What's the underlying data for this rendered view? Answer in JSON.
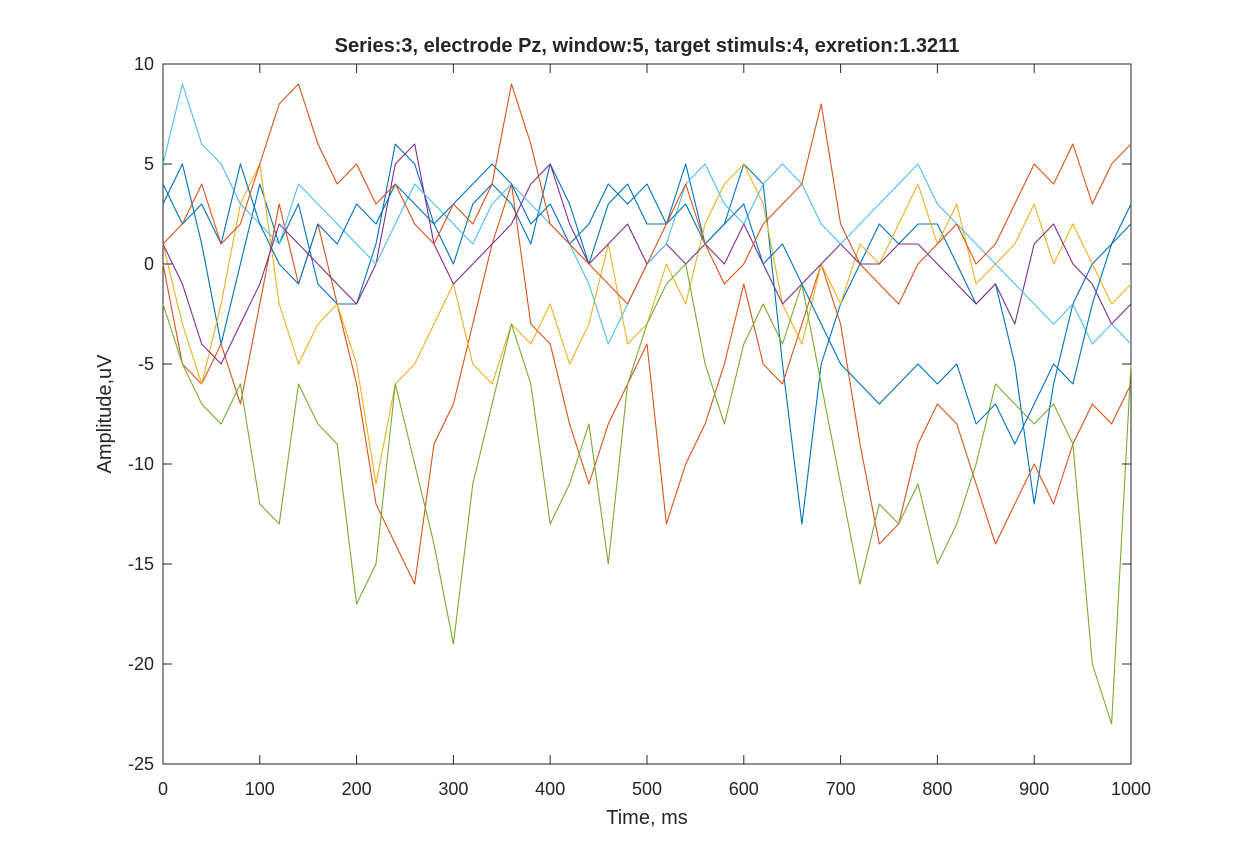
{
  "chart_data": {
    "type": "line",
    "title": "Series:3, electrode Pz, window:5, target stimuls:4, exretion:1.3211",
    "xlabel": "Time, ms",
    "ylabel": "Amplitude,uV",
    "xlim": [
      0,
      1000
    ],
    "ylim": [
      -25,
      10
    ],
    "xticks": [
      "0",
      "100",
      "200",
      "300",
      "400",
      "500",
      "600",
      "700",
      "800",
      "900",
      "1000"
    ],
    "yticks": [
      "10",
      "5",
      "0",
      "-5",
      "-10",
      "-15",
      "-20",
      "-25"
    ],
    "grid": false,
    "legend": "none",
    "colors": [
      "#0072BD",
      "#D95319",
      "#EDB120",
      "#7E2F8E",
      "#77AC30",
      "#4DBEEE",
      "#0072BD",
      "#D95319"
    ],
    "x": [
      0,
      20,
      40,
      60,
      80,
      100,
      120,
      140,
      160,
      180,
      200,
      220,
      240,
      260,
      280,
      300,
      320,
      340,
      360,
      380,
      400,
      420,
      440,
      460,
      480,
      500,
      520,
      540,
      560,
      580,
      600,
      620,
      640,
      660,
      680,
      700,
      720,
      740,
      760,
      780,
      800,
      820,
      840,
      860,
      880,
      900,
      920,
      940,
      960,
      980,
      1000
    ],
    "series": [
      {
        "values": [
          3,
          5,
          1,
          -4,
          0,
          4,
          1,
          3,
          -1,
          -2,
          -2,
          1,
          6,
          5,
          2,
          0,
          3,
          4,
          3,
          1,
          5,
          3,
          0,
          3,
          4,
          2,
          2,
          5,
          1,
          2,
          5,
          4,
          -5,
          -13,
          -5,
          -2,
          0,
          2,
          1,
          2,
          2,
          0,
          -2,
          -1,
          -5,
          -12,
          -6,
          -2,
          0,
          1,
          3
        ]
      },
      {
        "values": [
          0,
          -5,
          -6,
          -4,
          -7,
          -2,
          3,
          -1,
          2,
          -2,
          -6,
          -12,
          -14,
          -16,
          -9,
          -7,
          -3,
          1,
          4,
          -3,
          -4,
          -8,
          -11,
          -8,
          -6,
          -4,
          -13,
          -10,
          -8,
          -5,
          -1,
          -5,
          -6,
          -3,
          0,
          -3,
          -9,
          -14,
          -13,
          -9,
          -7,
          -8,
          -11,
          -14,
          -12,
          -10,
          -12,
          -9,
          -7,
          -8,
          -6
        ]
      },
      {
        "values": [
          1,
          -3,
          -6,
          -2,
          3,
          5,
          -2,
          -5,
          -3,
          -2,
          -5,
          -11,
          -6,
          -5,
          -3,
          -1,
          -5,
          -6,
          -3,
          -4,
          -2,
          -5,
          -3,
          1,
          -4,
          -3,
          0,
          -2,
          2,
          4,
          5,
          3,
          -2,
          -4,
          0,
          -2,
          1,
          0,
          2,
          4,
          1,
          3,
          -1,
          0,
          1,
          3,
          0,
          2,
          0,
          -2,
          -1
        ]
      },
      {
        "values": [
          1,
          -1,
          -4,
          -5,
          -3,
          -1,
          2,
          1,
          0,
          -1,
          -2,
          0,
          5,
          6,
          1,
          -1,
          0,
          1,
          2,
          4,
          5,
          2,
          0,
          1,
          2,
          0,
          1,
          0,
          1,
          0,
          2,
          0,
          -2,
          -1,
          0,
          1,
          0,
          0,
          1,
          1,
          0,
          -1,
          -2,
          -1,
          -3,
          1,
          2,
          0,
          -1,
          -3,
          -2
        ]
      },
      {
        "values": [
          -2,
          -5,
          -7,
          -8,
          -6,
          -12,
          -13,
          -6,
          -8,
          -9,
          -17,
          -15,
          -6,
          -10,
          -14,
          -19,
          -11,
          -7,
          -3,
          -6,
          -13,
          -11,
          -8,
          -15,
          -6,
          -3,
          -1,
          0,
          -5,
          -8,
          -4,
          -2,
          -4,
          -1,
          -6,
          -11,
          -16,
          -12,
          -13,
          -11,
          -15,
          -13,
          -10,
          -6,
          -7,
          -8,
          -7,
          -9,
          -20,
          -23,
          -5
        ]
      },
      {
        "values": [
          5,
          9,
          6,
          5,
          3,
          2,
          1,
          4,
          3,
          2,
          1,
          0,
          2,
          4,
          3,
          2,
          1,
          3,
          4,
          3,
          2,
          1,
          -1,
          -4,
          -2,
          0,
          1,
          4,
          5,
          3,
          2,
          4,
          5,
          4,
          2,
          1,
          2,
          3,
          4,
          5,
          3,
          2,
          1,
          0,
          -1,
          -2,
          -3,
          -2,
          -4,
          -3,
          -4
        ]
      },
      {
        "values": [
          4,
          2,
          3,
          1,
          5,
          2,
          0,
          -1,
          2,
          1,
          3,
          2,
          4,
          3,
          2,
          3,
          4,
          5,
          4,
          2,
          3,
          1,
          2,
          4,
          3,
          4,
          2,
          3,
          1,
          2,
          3,
          0,
          1,
          -1,
          -3,
          -5,
          -6,
          -7,
          -6,
          -5,
          -6,
          -5,
          -8,
          -7,
          -9,
          -7,
          -5,
          -6,
          -2,
          1,
          2
        ]
      },
      {
        "values": [
          1,
          2,
          4,
          1,
          2,
          5,
          8,
          9,
          6,
          4,
          5,
          3,
          4,
          2,
          1,
          3,
          2,
          4,
          9,
          6,
          2,
          1,
          0,
          -1,
          -2,
          0,
          2,
          4,
          1,
          -1,
          0,
          2,
          3,
          4,
          8,
          2,
          0,
          -1,
          -2,
          0,
          1,
          2,
          0,
          1,
          3,
          5,
          4,
          6,
          3,
          5,
          6
        ]
      }
    ]
  }
}
